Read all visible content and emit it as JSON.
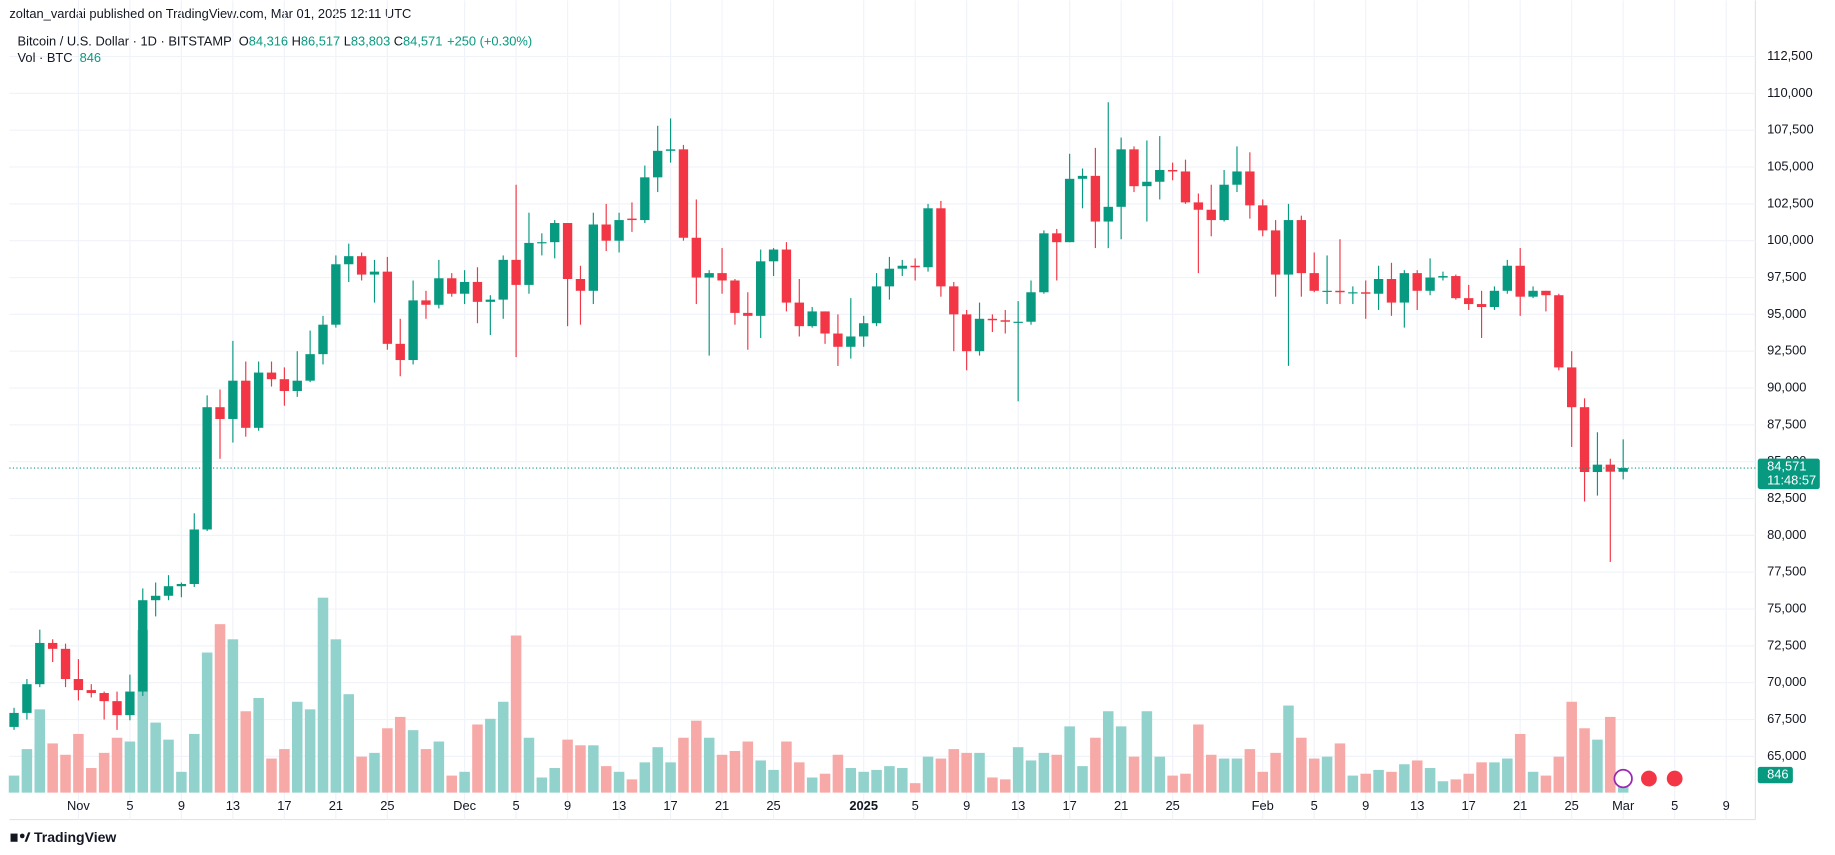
{
  "chart_data": {
    "type": "candlestick",
    "title": "zoltan_vardai published on TradingView.com, Mar 01, 2025 12:11 UTC",
    "legend": {
      "symbol": "Bitcoin / U.S. Dollar · 1D · BITSTAMP",
      "fields": [
        {
          "key": "O",
          "value": "84,316"
        },
        {
          "key": "H",
          "value": "86,517"
        },
        {
          "key": "L",
          "value": "83,803"
        },
        {
          "key": "C",
          "value": "84,571"
        }
      ],
      "change": "+250 (+0.30%)",
      "volume_name": "Vol · BTC",
      "volume_value": "846"
    },
    "price_tag": {
      "price": "84,571",
      "countdown": "11:48:57"
    },
    "footer": "TradingView",
    "up_color": "#089981",
    "down_color": "#f23645",
    "volume_up_color": "#92d2cc",
    "volume_down_color": "#f7a9a7",
    "grid": true,
    "ylim": [
      62540,
      113930
    ],
    "volume_lim": [
      0,
      40000
    ],
    "yticks": [
      {
        "value": 65000,
        "label": "65,000"
      },
      {
        "value": 67500,
        "label": "67,500"
      },
      {
        "value": 70000,
        "label": "70,000"
      },
      {
        "value": 72500,
        "label": "72,500"
      },
      {
        "value": 75000,
        "label": "75,000"
      },
      {
        "value": 77500,
        "label": "77,500"
      },
      {
        "value": 80000,
        "label": "80,000"
      },
      {
        "value": 82500,
        "label": "82,500"
      },
      {
        "value": 85000,
        "label": "85,000"
      },
      {
        "value": 87500,
        "label": "87,500"
      },
      {
        "value": 90000,
        "label": "90,000"
      },
      {
        "value": 92500,
        "label": "92,500"
      },
      {
        "value": 95000,
        "label": "95,000"
      },
      {
        "value": 97500,
        "label": "97,500"
      },
      {
        "value": 100000,
        "label": "100,000"
      },
      {
        "value": 102500,
        "label": "102,500"
      },
      {
        "value": 105000,
        "label": "105,000"
      },
      {
        "value": 107500,
        "label": "107,500"
      },
      {
        "value": 110000,
        "label": "110,000"
      },
      {
        "value": 112500,
        "label": "112,500"
      }
    ],
    "xticks": [
      {
        "value": "2024-11-01",
        "label": "Nov"
      },
      {
        "value": "2024-11-05",
        "label": "5"
      },
      {
        "value": "2024-11-09",
        "label": "9"
      },
      {
        "value": "2024-11-13",
        "label": "13"
      },
      {
        "value": "2024-11-17",
        "label": "17"
      },
      {
        "value": "2024-11-21",
        "label": "21"
      },
      {
        "value": "2024-11-25",
        "label": "25"
      },
      {
        "value": "2024-12-01",
        "label": "Dec"
      },
      {
        "value": "2024-12-05",
        "label": "5"
      },
      {
        "value": "2024-12-09",
        "label": "9"
      },
      {
        "value": "2024-12-13",
        "label": "13"
      },
      {
        "value": "2024-12-17",
        "label": "17"
      },
      {
        "value": "2024-12-21",
        "label": "21"
      },
      {
        "value": "2024-12-25",
        "label": "25"
      },
      {
        "value": "2025-01-01",
        "label": "2025"
      },
      {
        "value": "2025-01-05",
        "label": "5"
      },
      {
        "value": "2025-01-09",
        "label": "9"
      },
      {
        "value": "2025-01-13",
        "label": "13"
      },
      {
        "value": "2025-01-17",
        "label": "17"
      },
      {
        "value": "2025-01-21",
        "label": "21"
      },
      {
        "value": "2025-01-25",
        "label": "25"
      },
      {
        "value": "2025-02-01",
        "label": "Feb"
      },
      {
        "value": "2025-02-05",
        "label": "5"
      },
      {
        "value": "2025-02-09",
        "label": "9"
      },
      {
        "value": "2025-02-13",
        "label": "13"
      },
      {
        "value": "2025-02-17",
        "label": "17"
      },
      {
        "value": "2025-02-21",
        "label": "21"
      },
      {
        "value": "2025-02-25",
        "label": "25"
      },
      {
        "value": "2025-03-01",
        "label": "Mar"
      },
      {
        "value": "2025-03-05",
        "label": "5"
      },
      {
        "value": "2025-03-09",
        "label": "9"
      }
    ],
    "dates": [
      "2024-10-27",
      "2024-10-28",
      "2024-10-29",
      "2024-10-30",
      "2024-10-31",
      "2024-11-01",
      "2024-11-02",
      "2024-11-03",
      "2024-11-04",
      "2024-11-05",
      "2024-11-06",
      "2024-11-07",
      "2024-11-08",
      "2024-11-09",
      "2024-11-10",
      "2024-11-11",
      "2024-11-12",
      "2024-11-13",
      "2024-11-14",
      "2024-11-15",
      "2024-11-16",
      "2024-11-17",
      "2024-11-18",
      "2024-11-19",
      "2024-11-20",
      "2024-11-21",
      "2024-11-22",
      "2024-11-23",
      "2024-11-24",
      "2024-11-25",
      "2024-11-26",
      "2024-11-27",
      "2024-11-28",
      "2024-11-29",
      "2024-11-30",
      "2024-12-01",
      "2024-12-02",
      "2024-12-03",
      "2024-12-04",
      "2024-12-05",
      "2024-12-06",
      "2024-12-07",
      "2024-12-08",
      "2024-12-09",
      "2024-12-10",
      "2024-12-11",
      "2024-12-12",
      "2024-12-13",
      "2024-12-14",
      "2024-12-15",
      "2024-12-16",
      "2024-12-17",
      "2024-12-18",
      "2024-12-19",
      "2024-12-20",
      "2024-12-21",
      "2024-12-22",
      "2024-12-23",
      "2024-12-24",
      "2024-12-25",
      "2024-12-26",
      "2024-12-27",
      "2024-12-28",
      "2024-12-29",
      "2024-12-30",
      "2024-12-31",
      "2025-01-01",
      "2025-01-02",
      "2025-01-03",
      "2025-01-04",
      "2025-01-05",
      "2025-01-06",
      "2025-01-07",
      "2025-01-08",
      "2025-01-09",
      "2025-01-10",
      "2025-01-11",
      "2025-01-12",
      "2025-01-13",
      "2025-01-14",
      "2025-01-15",
      "2025-01-16",
      "2025-01-17",
      "2025-01-18",
      "2025-01-19",
      "2025-01-20",
      "2025-01-21",
      "2025-01-22",
      "2025-01-23",
      "2025-01-24",
      "2025-01-25",
      "2025-01-26",
      "2025-01-27",
      "2025-01-28",
      "2025-01-29",
      "2025-01-30",
      "2025-01-31",
      "2025-02-01",
      "2025-02-02",
      "2025-02-03",
      "2025-02-04",
      "2025-02-05",
      "2025-02-06",
      "2025-02-07",
      "2025-02-08",
      "2025-02-09",
      "2025-02-10",
      "2025-02-11",
      "2025-02-12",
      "2025-02-13",
      "2025-02-14",
      "2025-02-15",
      "2025-02-16",
      "2025-02-17",
      "2025-02-18",
      "2025-02-19",
      "2025-02-20",
      "2025-02-21",
      "2025-02-22",
      "2025-02-23",
      "2025-02-24",
      "2025-02-25",
      "2025-02-26",
      "2025-02-27",
      "2025-02-28",
      "2025-03-01"
    ],
    "open": [
      67000,
      67950,
      69900,
      72700,
      72300,
      70250,
      69500,
      69300,
      68750,
      67800,
      69400,
      75600,
      75900,
      76550,
      76700,
      80400,
      88700,
      87900,
      90500,
      87300,
      91050,
      90600,
      89800,
      90500,
      92300,
      94300,
      98400,
      98950,
      97700,
      97900,
      93000,
      91900,
      95950,
      95650,
      97450,
      96400,
      97200,
      95850,
      96000,
      98700,
      97000,
      99850,
      99900,
      101200,
      97400,
      96600,
      101100,
      100000,
      101500,
      101400,
      104300,
      106100,
      106200,
      100200,
      97500,
      97800,
      97300,
      95100,
      94900,
      98600,
      99400,
      95800,
      94200,
      95200,
      93700,
      92800,
      93500,
      94400,
      96900,
      98100,
      98300,
      98200,
      102200,
      96900,
      95000,
      92500,
      94700,
      94600,
      94500,
      94500,
      96500,
      100500,
      99900,
      104200,
      104400,
      101300,
      102300,
      106200,
      103700,
      104000,
      104800,
      104700,
      102600,
      102100,
      101400,
      103800,
      104700,
      102400,
      100700,
      97700,
      101400,
      97800,
      96600,
      96600,
      96500,
      96500,
      96400,
      97400,
      95800,
      97800,
      96600,
      97500,
      97600,
      96100,
      95700,
      95500,
      96600,
      98300,
      96200,
      96600,
      96300,
      91400,
      88700,
      84300,
      84800,
      84316
    ],
    "high": [
      68300,
      70250,
      73600,
      72950,
      72650,
      71600,
      69900,
      69400,
      69400,
      70550,
      76400,
      76800,
      77300,
      76800,
      81500,
      89500,
      89900,
      93200,
      91800,
      91800,
      91800,
      91400,
      92500,
      93900,
      94900,
      99000,
      99800,
      99200,
      98700,
      98900,
      94700,
      97300,
      96600,
      98700,
      97800,
      98000,
      98200,
      96300,
      99000,
      103800,
      101900,
      100500,
      101400,
      101200,
      98300,
      101900,
      102500,
      101900,
      102600,
      105100,
      107800,
      108300,
      106500,
      102800,
      98000,
      99500,
      97400,
      96500,
      99400,
      99500,
      99900,
      97400,
      95500,
      95200,
      95000,
      96100,
      94900,
      97800,
      98900,
      98700,
      98800,
      102500,
      102700,
      97200,
      95300,
      95800,
      95000,
      95300,
      95900,
      97300,
      100700,
      100800,
      105900,
      104900,
      106300,
      109400,
      107000,
      106400,
      106800,
      107100,
      105300,
      105500,
      103200,
      103800,
      104800,
      106400,
      106000,
      102800,
      101400,
      102500,
      101700,
      99200,
      99000,
      100100,
      96900,
      97300,
      98300,
      98500,
      98000,
      98000,
      98800,
      97900,
      97700,
      97000,
      96600,
      96900,
      98700,
      99500,
      96900,
      96600,
      96400,
      92500,
      89300,
      87000,
      85200,
      86517
    ],
    "low": [
      66800,
      67500,
      69700,
      71400,
      69700,
      68800,
      69000,
      67500,
      66800,
      67450,
      69100,
      74500,
      75600,
      75800,
      76500,
      80300,
      85200,
      86300,
      86700,
      87100,
      90100,
      88800,
      89400,
      90400,
      91600,
      94100,
      97200,
      97300,
      95800,
      92600,
      90800,
      91600,
      94700,
      95400,
      96200,
      95700,
      94400,
      93600,
      94700,
      92100,
      96400,
      99000,
      98800,
      94200,
      94300,
      95700,
      99300,
      99200,
      100600,
      101200,
      103300,
      105300,
      100000,
      95700,
      92200,
      96400,
      94300,
      92600,
      93400,
      97600,
      95200,
      93500,
      94100,
      93000,
      91500,
      92000,
      92800,
      94200,
      96000,
      97600,
      97300,
      97900,
      96200,
      92500,
      91200,
      92200,
      93800,
      93700,
      89100,
      94300,
      96400,
      97300,
      99900,
      102200,
      99500,
      99500,
      100100,
      103300,
      101300,
      102800,
      104100,
      102500,
      97800,
      100300,
      101300,
      103300,
      101500,
      100300,
      96200,
      91500,
      96200,
      96500,
      95700,
      95700,
      95700,
      94700,
      95300,
      94900,
      94100,
      95300,
      96300,
      97300,
      96000,
      95300,
      93400,
      95300,
      96400,
      94900,
      96100,
      95200,
      91200,
      86000,
      82300,
      82700,
      78200,
      83803
    ],
    "close": [
      67950,
      69900,
      72700,
      72300,
      70250,
      69500,
      69300,
      68750,
      67800,
      69400,
      75600,
      75900,
      76550,
      76700,
      80400,
      88700,
      87900,
      90500,
      87300,
      91050,
      90600,
      89800,
      90500,
      92300,
      94300,
      98400,
      98950,
      97700,
      97900,
      93000,
      91900,
      95950,
      95650,
      97450,
      96400,
      97200,
      95850,
      96000,
      98700,
      97000,
      99850,
      99900,
      101200,
      97400,
      96600,
      101100,
      100000,
      101400,
      101400,
      104300,
      106100,
      106200,
      100200,
      97500,
      97800,
      97300,
      95100,
      94900,
      98600,
      99400,
      95800,
      94200,
      95200,
      93700,
      92800,
      93500,
      94400,
      96900,
      98100,
      98300,
      98200,
      102200,
      96900,
      95000,
      92500,
      94700,
      94600,
      94500,
      94500,
      96500,
      100500,
      99900,
      104200,
      104400,
      101300,
      102300,
      106200,
      103700,
      104000,
      104800,
      104700,
      102600,
      102100,
      101400,
      103800,
      104700,
      102400,
      100700,
      97700,
      101400,
      97800,
      96600,
      96600,
      96500,
      96500,
      96400,
      97400,
      95800,
      97800,
      96600,
      97500,
      97600,
      96100,
      95700,
      95500,
      96600,
      98300,
      96200,
      96600,
      96300,
      91400,
      88700,
      84300,
      84800,
      84321,
      84571
    ],
    "volume": [
      900,
      2300,
      4400,
      2600,
      2000,
      3100,
      1300,
      2100,
      2900,
      2700,
      8600,
      3700,
      2800,
      1100,
      3100,
      7400,
      8900,
      8100,
      4300,
      5000,
      1800,
      2300,
      4800,
      4400,
      10300,
      8100,
      5200,
      1900,
      2100,
      3400,
      4000,
      3300,
      2300,
      2700,
      900,
      1100,
      3600,
      3900,
      4800,
      8300,
      2900,
      800,
      1300,
      2800,
      2500,
      2500,
      1400,
      1100,
      700,
      1600,
      2400,
      1600,
      2900,
      3800,
      2900,
      2000,
      2200,
      2700,
      1700,
      1200,
      2700,
      1600,
      800,
      1000,
      2000,
      1300,
      1100,
      1200,
      1400,
      1300,
      500,
      1900,
      1800,
      2300,
      2100,
      2100,
      800,
      700,
      2400,
      1700,
      2100,
      2000,
      3500,
      1400,
      2900,
      4300,
      3500,
      1900,
      4300,
      1900,
      900,
      1000,
      3600,
      2000,
      1800,
      1800,
      2300,
      1100,
      2100,
      4600,
      2900,
      1800,
      1900,
      2600,
      900,
      1000,
      1200,
      1100,
      1500,
      1700,
      1300,
      600,
      700,
      1000,
      1600,
      1600,
      1800,
      3100,
      1100,
      900,
      1900,
      4800,
      3400,
      2800,
      4000,
      846
    ]
  }
}
